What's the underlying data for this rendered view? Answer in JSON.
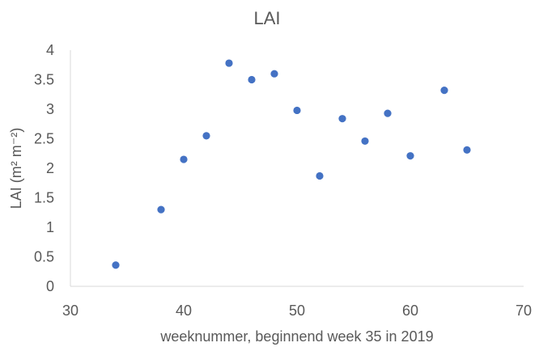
{
  "chart_data": {
    "type": "scatter",
    "title": "LAI",
    "xlabel": "weeknummer, beginnend week 35 in 2019",
    "ylabel": "LAI (m² m⁻²)",
    "xlim": [
      30,
      70
    ],
    "ylim": [
      0,
      4
    ],
    "xticks": [
      "30",
      "40",
      "50",
      "60",
      "70"
    ],
    "yticks": [
      "0",
      "0.5",
      "1",
      "1.5",
      "2",
      "2.5",
      "3",
      "3.5",
      "4"
    ],
    "grid": false,
    "series": [
      {
        "color": "#4472c4",
        "points": [
          {
            "x": 34,
            "y": 0.36
          },
          {
            "x": 38,
            "y": 1.3
          },
          {
            "x": 40,
            "y": 2.15
          },
          {
            "x": 42,
            "y": 2.55
          },
          {
            "x": 44,
            "y": 3.78
          },
          {
            "x": 46,
            "y": 3.5
          },
          {
            "x": 48,
            "y": 3.6
          },
          {
            "x": 50,
            "y": 2.98
          },
          {
            "x": 52,
            "y": 1.87
          },
          {
            "x": 54,
            "y": 2.84
          },
          {
            "x": 56,
            "y": 2.46
          },
          {
            "x": 58,
            "y": 2.93
          },
          {
            "x": 60,
            "y": 2.21
          },
          {
            "x": 63,
            "y": 3.32
          },
          {
            "x": 65,
            "y": 2.31
          }
        ]
      }
    ]
  }
}
